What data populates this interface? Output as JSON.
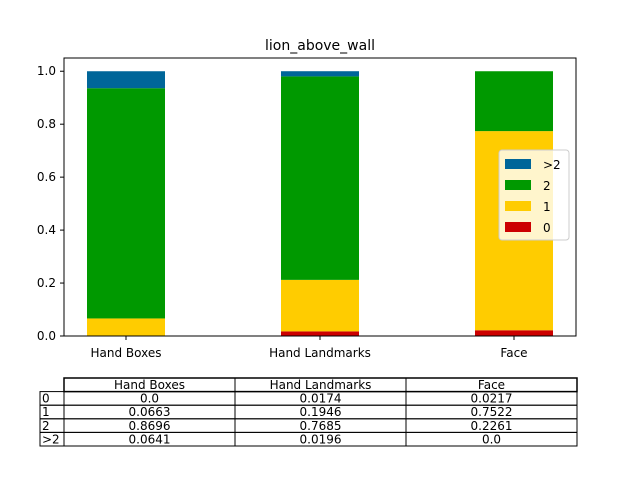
{
  "chart_data": {
    "type": "bar",
    "stacked": true,
    "title": "lion_above_wall",
    "xlabel": "",
    "ylabel": "",
    "categories": [
      "Hand Boxes",
      "Hand Landmarks",
      "Face"
    ],
    "ylim": [
      0,
      1.05
    ],
    "yticks": [
      "0.0",
      "0.2",
      "0.4",
      "0.6",
      "0.8",
      "1.0"
    ],
    "series": [
      {
        "name": "0",
        "color": "#cc0000",
        "values": [
          0.0,
          0.0174,
          0.0217
        ]
      },
      {
        "name": "1",
        "color": "#ffcc00",
        "values": [
          0.0663,
          0.1946,
          0.7522
        ]
      },
      {
        "name": "2",
        "color": "#009900",
        "values": [
          0.8696,
          0.7685,
          0.2261
        ]
      },
      {
        "name": ">2",
        "color": "#006699",
        "values": [
          0.0641,
          0.0196,
          0.0
        ]
      }
    ],
    "legend": {
      "placement": "center-right",
      "order": [
        ">2",
        "2",
        "1",
        "0"
      ]
    },
    "grid": false
  },
  "table": {
    "columns": [
      "Hand Boxes",
      "Hand Landmarks",
      "Face"
    ],
    "rows": [
      {
        "label": "0",
        "cells": [
          "0.0",
          "0.0174",
          "0.0217"
        ]
      },
      {
        "label": "1",
        "cells": [
          "0.0663",
          "0.1946",
          "0.7522"
        ]
      },
      {
        "label": "2",
        "cells": [
          "0.8696",
          "0.7685",
          "0.2261"
        ]
      },
      {
        "label": ">2",
        "cells": [
          "0.0641",
          "0.0196",
          "0.0"
        ]
      }
    ]
  }
}
